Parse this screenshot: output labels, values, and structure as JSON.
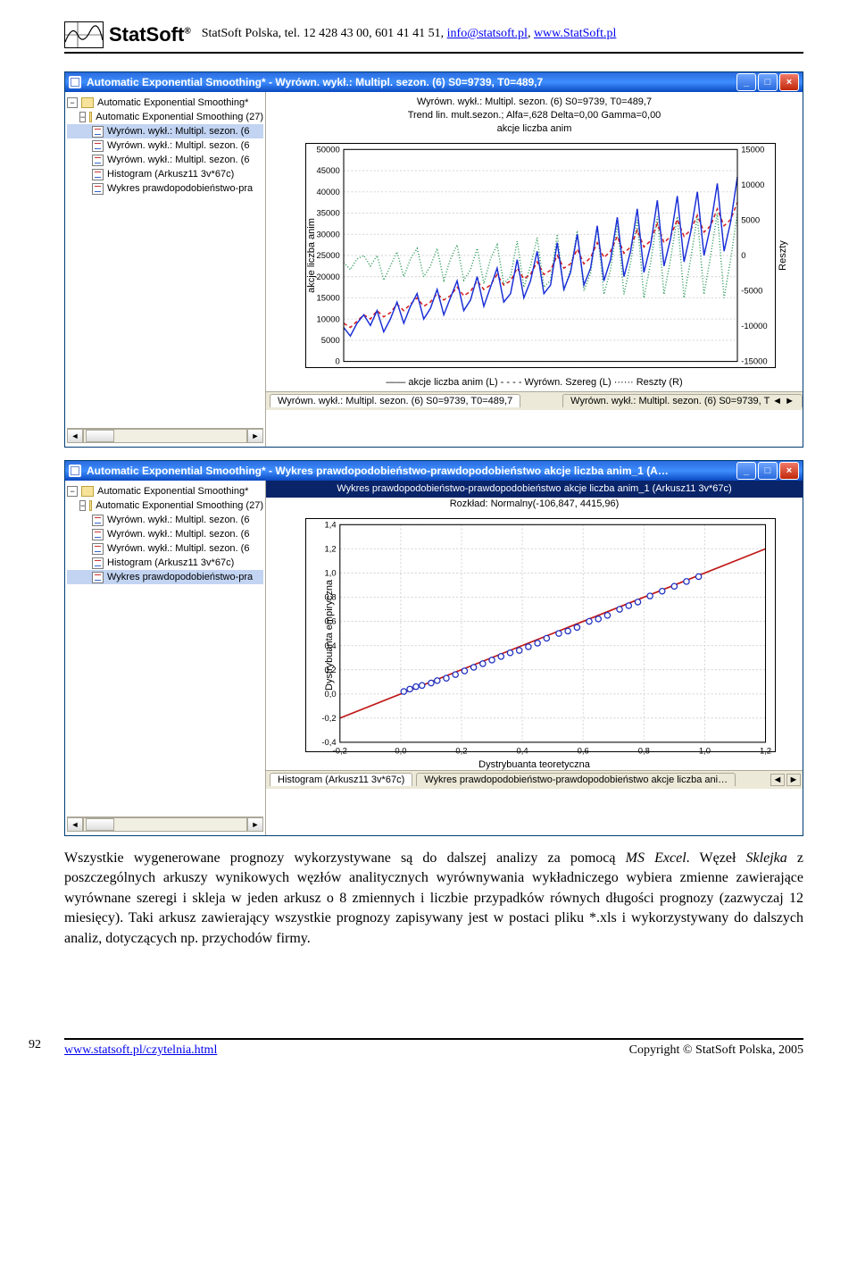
{
  "header": {
    "brand": "StatSoft",
    "reg": "®",
    "info_prefix": "StatSoft Polska, tel. 12 428 43 00, 601 41 41 51, ",
    "email": "info@statsoft.pl",
    "info_sep": ", ",
    "site": "www.StatSoft.pl"
  },
  "win1": {
    "title": "Automatic Exponential Smoothing* - Wyrówn. wykł.:  Multipl. sezon. (6) S0=9739, T0=489,7",
    "tree_root": "Automatic Exponential Smoothing*",
    "tree_folder": "Automatic Exponential Smoothing (27)",
    "tree_items": [
      "Wyrówn. wykł.: Multipl. sezon. (6",
      "Wyrówn. wykł.: Multipl. sezon. (6",
      "Wyrówn. wykł.: Multipl. sezon. (6",
      "Histogram (Arkusz11 3v*67c)",
      "Wykres prawdopodobieństwo-pra"
    ],
    "selected_tree_index": 0,
    "title_line1": "Wyrówn. wykł.:  Multipl. sezon. (6) S0=9739, T0=489,7",
    "title_line2": "Trend lin. mult.sezon.; Alfa=,628 Delta=0,00 Gamma=0,00",
    "title_line3": "akcje liczba anim",
    "ylabel_left": "akcje liczba anim",
    "ylabel_right": "Reszty",
    "legend": "—— akcje liczba anim (L)    - - - -  Wyrówn. Szereg (L)    ······  Reszty (R)",
    "y_left": {
      "min": 0,
      "max": 50000,
      "ticks": [
        0,
        5000,
        10000,
        15000,
        20000,
        25000,
        30000,
        35000,
        40000,
        45000,
        50000
      ]
    },
    "y_right": {
      "min": -15000,
      "max": 15000,
      "ticks": [
        -15000,
        -10000,
        -5000,
        0,
        5000,
        10000,
        15000
      ]
    },
    "series1_color": "#1a2fd6",
    "series2_color": "#d21a1a",
    "series3_color": "#2e9a5a",
    "n_points": 60,
    "series1": [
      8000,
      6000,
      9000,
      11000,
      8500,
      12000,
      7000,
      10000,
      14000,
      9000,
      13000,
      16000,
      10000,
      12500,
      17000,
      11000,
      15000,
      19000,
      12000,
      14500,
      20000,
      13000,
      17500,
      22000,
      14000,
      16000,
      24000,
      15000,
      19000,
      26000,
      16000,
      18000,
      28000,
      17000,
      21000,
      30000,
      18000,
      22000,
      32000,
      19000,
      24000,
      34000,
      20000,
      26000,
      36000,
      21000,
      27500,
      38000,
      22500,
      29000,
      39000,
      23500,
      30500,
      40000,
      25000,
      32000,
      42000,
      26000,
      33000,
      43500
    ],
    "series2": [
      9000,
      8000,
      9500,
      11000,
      10000,
      12000,
      10500,
      11500,
      13500,
      12000,
      13500,
      15000,
      13000,
      14000,
      16000,
      14500,
      15500,
      17500,
      15500,
      16500,
      19000,
      17000,
      18000,
      20500,
      18000,
      19000,
      22000,
      19500,
      20500,
      23500,
      20500,
      21500,
      25000,
      22000,
      23000,
      26500,
      23000,
      24500,
      28000,
      24500,
      26000,
      29500,
      25500,
      27000,
      31000,
      27000,
      28500,
      32500,
      28000,
      29500,
      33500,
      29500,
      31000,
      34500,
      30500,
      32000,
      36000,
      32000,
      33500,
      37500
    ],
    "series3": [
      -1000,
      -2000,
      -500,
      0,
      -1500,
      0,
      -3500,
      -1500,
      500,
      -3000,
      -500,
      1000,
      -3000,
      -1500,
      1000,
      -3500,
      -500,
      1500,
      -3500,
      -2000,
      1000,
      -4000,
      -500,
      1500,
      -4000,
      -3000,
      2000,
      -4500,
      -1500,
      2500,
      -4500,
      -3500,
      3000,
      -5000,
      -2000,
      3500,
      -5000,
      -2500,
      4000,
      -5500,
      -2000,
      4500,
      -5500,
      -1000,
      5000,
      -6000,
      -1000,
      5500,
      -5500,
      -500,
      5500,
      -6000,
      -500,
      5500,
      -5500,
      0,
      6000,
      -6000,
      -500,
      6000
    ],
    "tab1": "Wyrówn. wykł.: Multipl. sezon. (6) S0=9739, T0=489,7",
    "tab2": "Wyrówn. wykł.: Multipl. sezon. (6) S0=9739, T ◄ ►"
  },
  "win2": {
    "title": "Automatic Exponential Smoothing* - Wykres prawdopodobieństwo-prawdopodobieństwo akcje liczba anim_1 (A…",
    "title_line1": "Wykres prawdopodobieństwo-prawdopodobieństwo akcje liczba anim_1 (Arkusz11 3v*67c)",
    "title_line2": "Rozkład: Normalny(-106,847, 4415,96)",
    "ylabel": "Dystrybuanta empiryczna",
    "xlabel": "Dystrybuanta teoretyczna",
    "x": {
      "min": -0.2,
      "max": 1.2,
      "ticks": [
        -0.2,
        0.0,
        0.2,
        0.4,
        0.6,
        0.8,
        1.0,
        1.2
      ]
    },
    "y": {
      "min": -0.4,
      "max": 1.4,
      "ticks": [
        -0.4,
        -0.2,
        0.0,
        0.2,
        0.4,
        0.6,
        0.8,
        1.0,
        1.2,
        1.4
      ]
    },
    "line_color": "#c01818",
    "marker_color": "#2030c0",
    "marker_fill": "#ffffff",
    "points": [
      [
        0.01,
        0.02
      ],
      [
        0.03,
        0.04
      ],
      [
        0.05,
        0.06
      ],
      [
        0.07,
        0.07
      ],
      [
        0.1,
        0.09
      ],
      [
        0.12,
        0.11
      ],
      [
        0.15,
        0.13
      ],
      [
        0.18,
        0.16
      ],
      [
        0.21,
        0.19
      ],
      [
        0.24,
        0.22
      ],
      [
        0.27,
        0.25
      ],
      [
        0.3,
        0.28
      ],
      [
        0.33,
        0.31
      ],
      [
        0.36,
        0.34
      ],
      [
        0.39,
        0.36
      ],
      [
        0.42,
        0.39
      ],
      [
        0.45,
        0.42
      ],
      [
        0.48,
        0.46
      ],
      [
        0.52,
        0.5
      ],
      [
        0.55,
        0.52
      ],
      [
        0.58,
        0.55
      ],
      [
        0.62,
        0.6
      ],
      [
        0.65,
        0.62
      ],
      [
        0.68,
        0.65
      ],
      [
        0.72,
        0.7
      ],
      [
        0.75,
        0.73
      ],
      [
        0.78,
        0.76
      ],
      [
        0.82,
        0.81
      ],
      [
        0.86,
        0.85
      ],
      [
        0.9,
        0.89
      ],
      [
        0.94,
        0.93
      ],
      [
        0.98,
        0.97
      ]
    ],
    "tab1": "Histogram (Arkusz11 3v*67c)",
    "tab2": "Wykres prawdopodobieństwo-prawdopodobieństwo akcje liczba ani…"
  },
  "paragraph": "Wszystkie wygenerowane prognozy wykorzystywane są do dalszej analizy za pomocą <i>MS Excel</i>. Węzeł <i>Sklejka</i> z poszczególnych arkuszy wynikowych węzłów analitycznych wyrównywania wykładniczego wybiera zmienne zawierające wyrównane szeregi i skleja w jeden arkusz o 8 zmiennych i liczbie przypadków równych długości prognozy (zazwyczaj 12 miesięcy). Taki arkusz zawierający wszystkie prognozy zapisywany jest w postaci pliku *.xls i wykorzystywany do dalszych analiz, dotyczących np. przychodów firmy.",
  "footer": {
    "page": "92",
    "left": "www.statsoft.pl/czytelnia.html",
    "right": "Copyright © StatSoft Polska, 2005"
  },
  "ui": {
    "min": "_",
    "max": "□",
    "close": "×",
    "left": "◄",
    "right": "►"
  }
}
